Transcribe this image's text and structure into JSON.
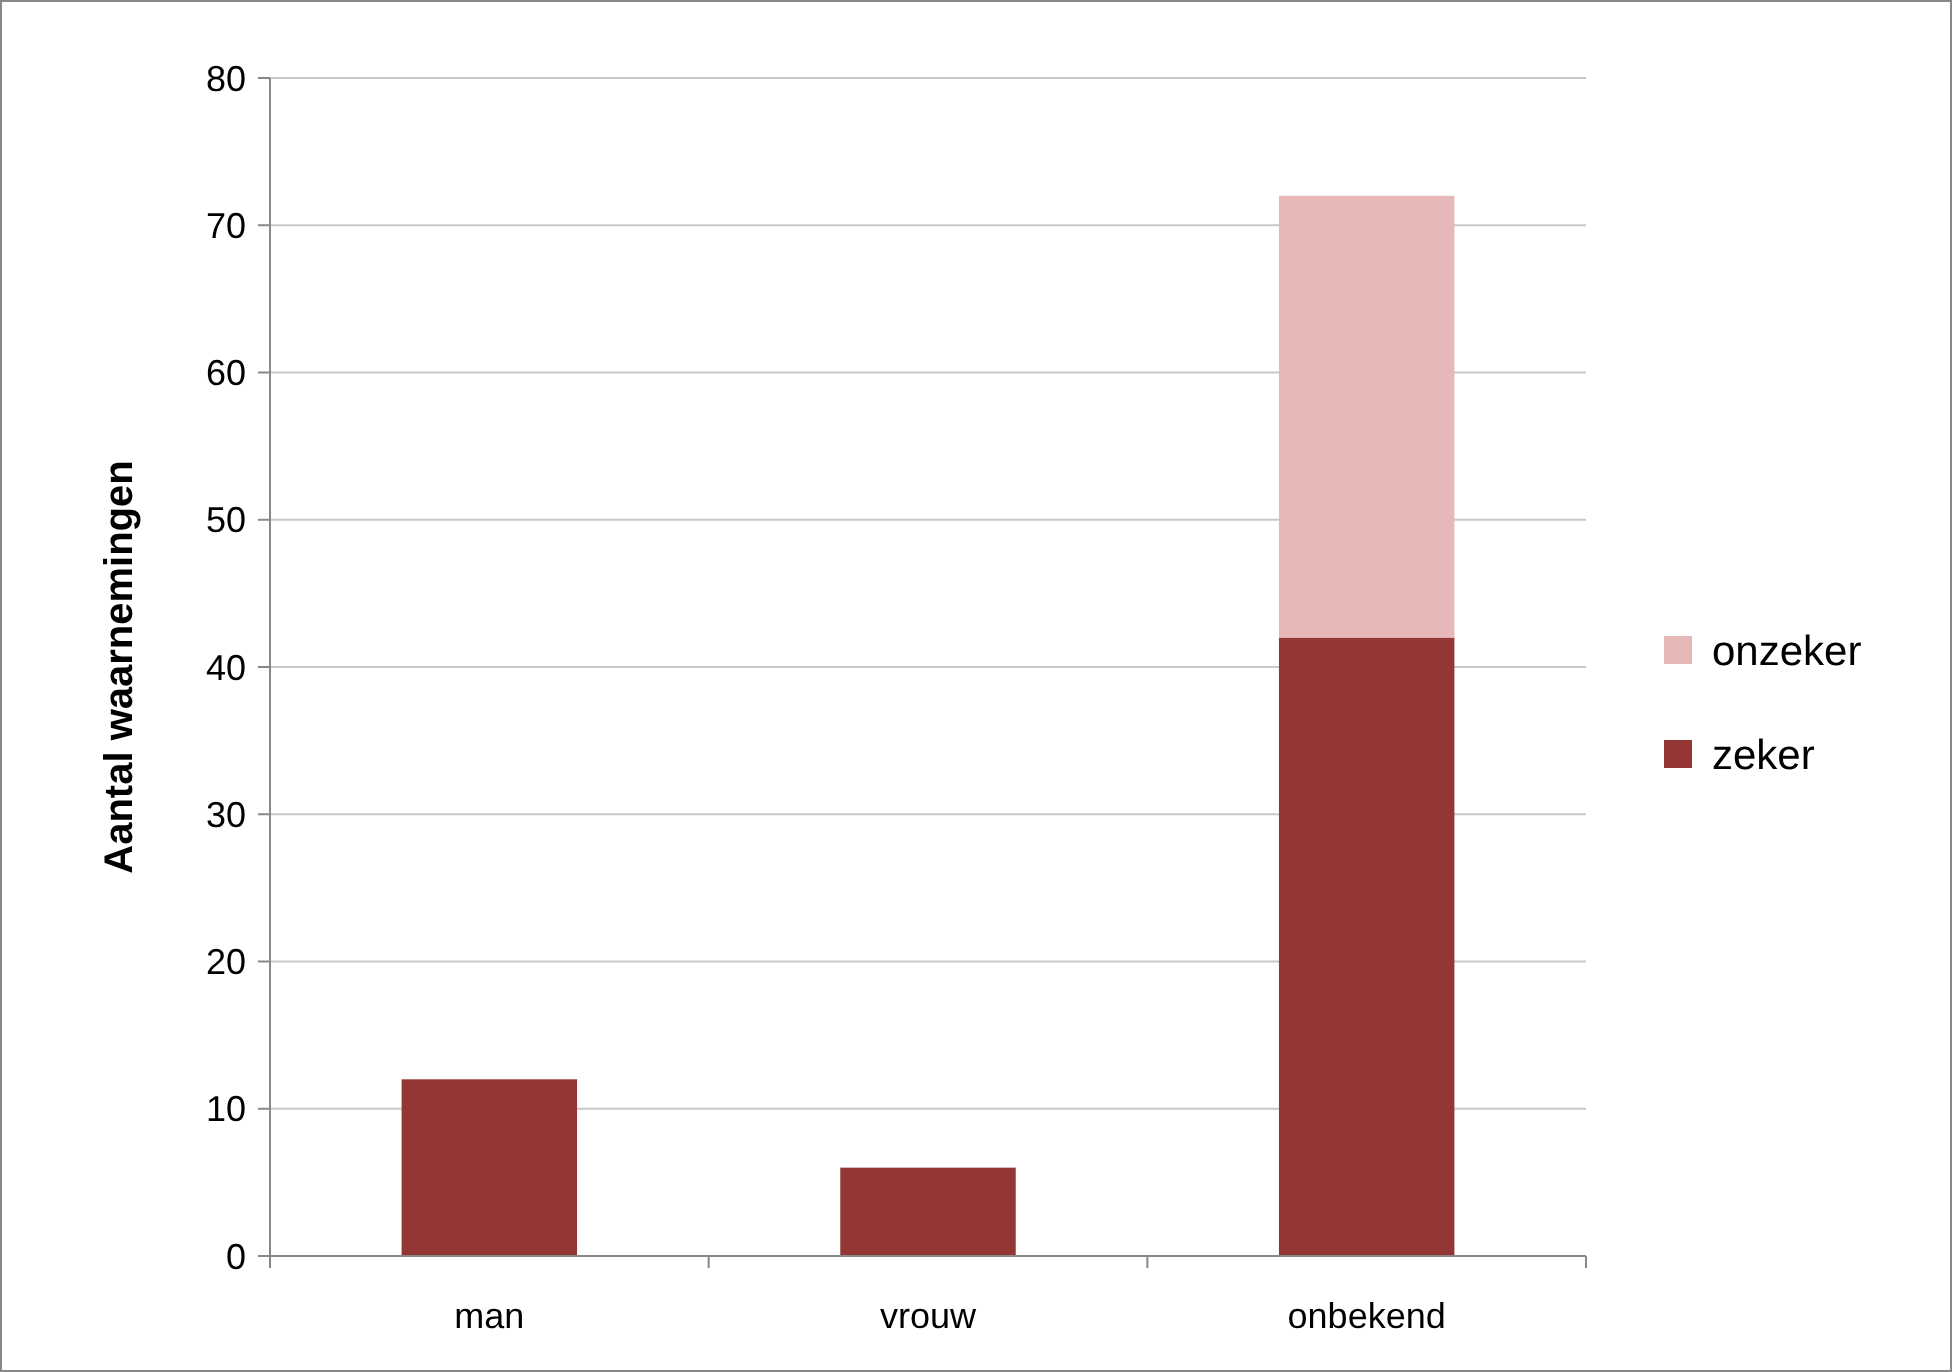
{
  "chart_data": {
    "type": "bar",
    "stacked": true,
    "ylabel": "Aantal waarnemingen",
    "categories": [
      "man",
      "vrouw",
      "onbekend"
    ],
    "series": [
      {
        "name": "zeker",
        "color": "#943634",
        "values": [
          12,
          6,
          42
        ]
      },
      {
        "name": "onzeker",
        "color": "#e6b9b8",
        "values": [
          0,
          0,
          30
        ]
      }
    ],
    "ylim": [
      0,
      80
    ],
    "yticks": [
      0,
      10,
      20,
      30,
      40,
      50,
      60,
      70,
      80
    ],
    "grid": "y",
    "legend": "right"
  }
}
